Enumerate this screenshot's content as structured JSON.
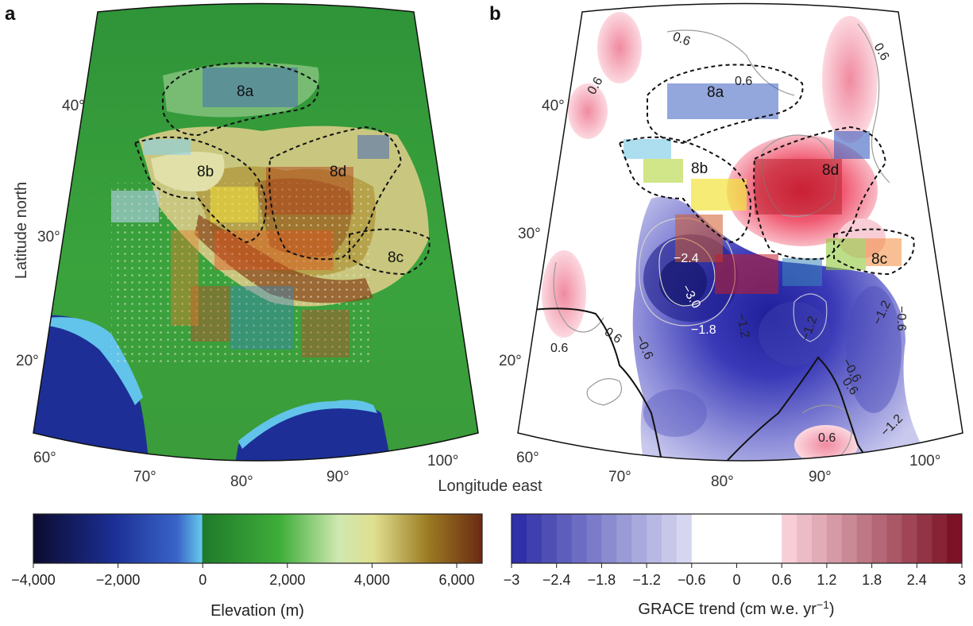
{
  "panels": {
    "a": {
      "letter": "a"
    },
    "b": {
      "letter": "b"
    }
  },
  "regions": [
    "8a",
    "8b",
    "8c",
    "8d"
  ],
  "axes": {
    "latitude_title": "Latitude north",
    "longitude_title": "Longitude east",
    "lat_ticks": [
      "20°",
      "30°",
      "40°"
    ],
    "lon_ticks": [
      "60°",
      "70°",
      "80°",
      "90°",
      "100°"
    ]
  },
  "contours": {
    "positive": [
      "0.6",
      "0.6",
      "0.6",
      "0.6",
      "0.6",
      "0.6",
      "0.6",
      "0.6"
    ],
    "negative": [
      "−2.4",
      "−3.0",
      "−1.8",
      "−1.2",
      "−1.2",
      "−1.2",
      "−0.6",
      "−0.6",
      "−0.6",
      "−1.2",
      "−0.6"
    ]
  },
  "colorbars": {
    "elevation": {
      "title": "Elevation (m)",
      "ticks": [
        "−4,000",
        "−2,000",
        "0",
        "2,000",
        "4,000",
        "6,000"
      ],
      "range": [
        -4000,
        6600
      ]
    },
    "grace": {
      "title": "GRACE trend (cm w.e. yr",
      "title_sup": "−1",
      "title_end": ")",
      "ticks": [
        "−3",
        "−2.4",
        "−1.8",
        "−1.2",
        "−0.6",
        "0",
        "0.6",
        "1.2",
        "1.8",
        "2.4",
        "3"
      ],
      "range": [
        -3,
        3
      ]
    }
  },
  "colors": {
    "ocean_deep": "#1a2a8c",
    "ocean_shallow": "#5fc7e8",
    "lowland": "#2f9a34",
    "highland": "#d9cf86",
    "peak": "#7a3f15",
    "negative_trend": "#3b3bb5",
    "positive_trend": "#e8324a"
  }
}
